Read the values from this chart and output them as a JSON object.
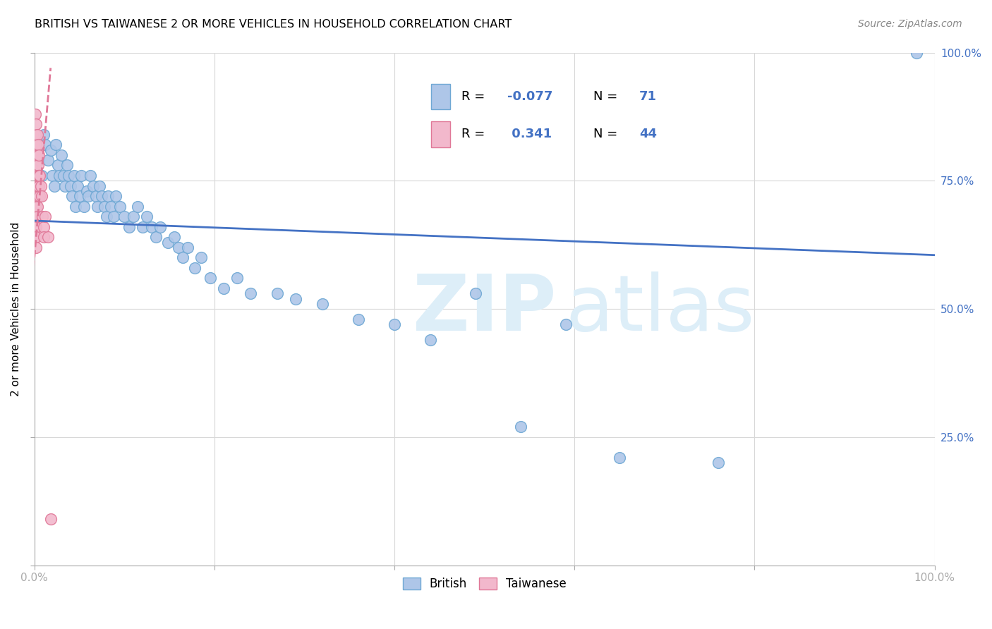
{
  "title": "BRITISH VS TAIWANESE 2 OR MORE VEHICLES IN HOUSEHOLD CORRELATION CHART",
  "source": "Source: ZipAtlas.com",
  "ylabel": "2 or more Vehicles in Household",
  "xlim": [
    0,
    1
  ],
  "ylim": [
    0,
    1
  ],
  "ytick_values": [
    0,
    0.25,
    0.5,
    0.75,
    1.0
  ],
  "xtick_values": [
    0,
    0.2,
    0.4,
    0.6,
    0.8,
    1.0
  ],
  "british_color": "#aec6e8",
  "british_edge": "#6fa8d4",
  "taiwanese_color": "#f2b8cc",
  "taiwanese_edge": "#e07898",
  "trend_blue": "#4472c4",
  "trend_pink": "#e07898",
  "legend_R_british": "-0.077",
  "legend_N_british": "71",
  "legend_R_taiwanese": "0.341",
  "legend_N_taiwanese": "44",
  "grid_color": "#d8d8d8",
  "right_tick_color": "#4472c4",
  "blue_trend_x0": 0.0,
  "blue_trend_y0": 0.672,
  "blue_trend_x1": 1.0,
  "blue_trend_y1": 0.605,
  "pink_trend_x0": -0.002,
  "pink_trend_y0": 0.56,
  "pink_trend_x1": 0.018,
  "pink_trend_y1": 0.97,
  "british_x": [
    0.005,
    0.008,
    0.01,
    0.012,
    0.015,
    0.018,
    0.02,
    0.022,
    0.024,
    0.026,
    0.028,
    0.03,
    0.032,
    0.034,
    0.036,
    0.038,
    0.04,
    0.042,
    0.044,
    0.046,
    0.048,
    0.05,
    0.052,
    0.055,
    0.058,
    0.06,
    0.062,
    0.065,
    0.068,
    0.07,
    0.072,
    0.075,
    0.078,
    0.08,
    0.082,
    0.085,
    0.088,
    0.09,
    0.095,
    0.1,
    0.105,
    0.11,
    0.115,
    0.12,
    0.125,
    0.13,
    0.135,
    0.14,
    0.148,
    0.155,
    0.16,
    0.165,
    0.17,
    0.178,
    0.185,
    0.195,
    0.21,
    0.225,
    0.24,
    0.27,
    0.29,
    0.32,
    0.36,
    0.4,
    0.44,
    0.49,
    0.54,
    0.59,
    0.65,
    0.76,
    0.98
  ],
  "british_y": [
    0.79,
    0.76,
    0.84,
    0.82,
    0.79,
    0.81,
    0.76,
    0.74,
    0.82,
    0.78,
    0.76,
    0.8,
    0.76,
    0.74,
    0.78,
    0.76,
    0.74,
    0.72,
    0.76,
    0.7,
    0.74,
    0.72,
    0.76,
    0.7,
    0.73,
    0.72,
    0.76,
    0.74,
    0.72,
    0.7,
    0.74,
    0.72,
    0.7,
    0.68,
    0.72,
    0.7,
    0.68,
    0.72,
    0.7,
    0.68,
    0.66,
    0.68,
    0.7,
    0.66,
    0.68,
    0.66,
    0.64,
    0.66,
    0.63,
    0.64,
    0.62,
    0.6,
    0.62,
    0.58,
    0.6,
    0.56,
    0.54,
    0.56,
    0.53,
    0.53,
    0.52,
    0.51,
    0.48,
    0.47,
    0.44,
    0.53,
    0.27,
    0.47,
    0.21,
    0.2,
    1.0
  ],
  "taiwanese_x": [
    0.001,
    0.001,
    0.001,
    0.001,
    0.001,
    0.001,
    0.001,
    0.001,
    0.001,
    0.001,
    0.002,
    0.002,
    0.002,
    0.002,
    0.002,
    0.002,
    0.002,
    0.002,
    0.002,
    0.002,
    0.003,
    0.003,
    0.003,
    0.003,
    0.003,
    0.003,
    0.003,
    0.004,
    0.004,
    0.004,
    0.004,
    0.005,
    0.005,
    0.005,
    0.006,
    0.006,
    0.007,
    0.008,
    0.009,
    0.01,
    0.01,
    0.012,
    0.015,
    0.018
  ],
  "taiwanese_y": [
    0.88,
    0.84,
    0.8,
    0.76,
    0.74,
    0.72,
    0.7,
    0.68,
    0.66,
    0.64,
    0.86,
    0.82,
    0.78,
    0.74,
    0.72,
    0.7,
    0.68,
    0.66,
    0.64,
    0.62,
    0.84,
    0.8,
    0.76,
    0.74,
    0.72,
    0.7,
    0.68,
    0.82,
    0.78,
    0.76,
    0.72,
    0.8,
    0.76,
    0.74,
    0.76,
    0.72,
    0.74,
    0.72,
    0.68,
    0.66,
    0.64,
    0.68,
    0.64,
    0.09
  ]
}
